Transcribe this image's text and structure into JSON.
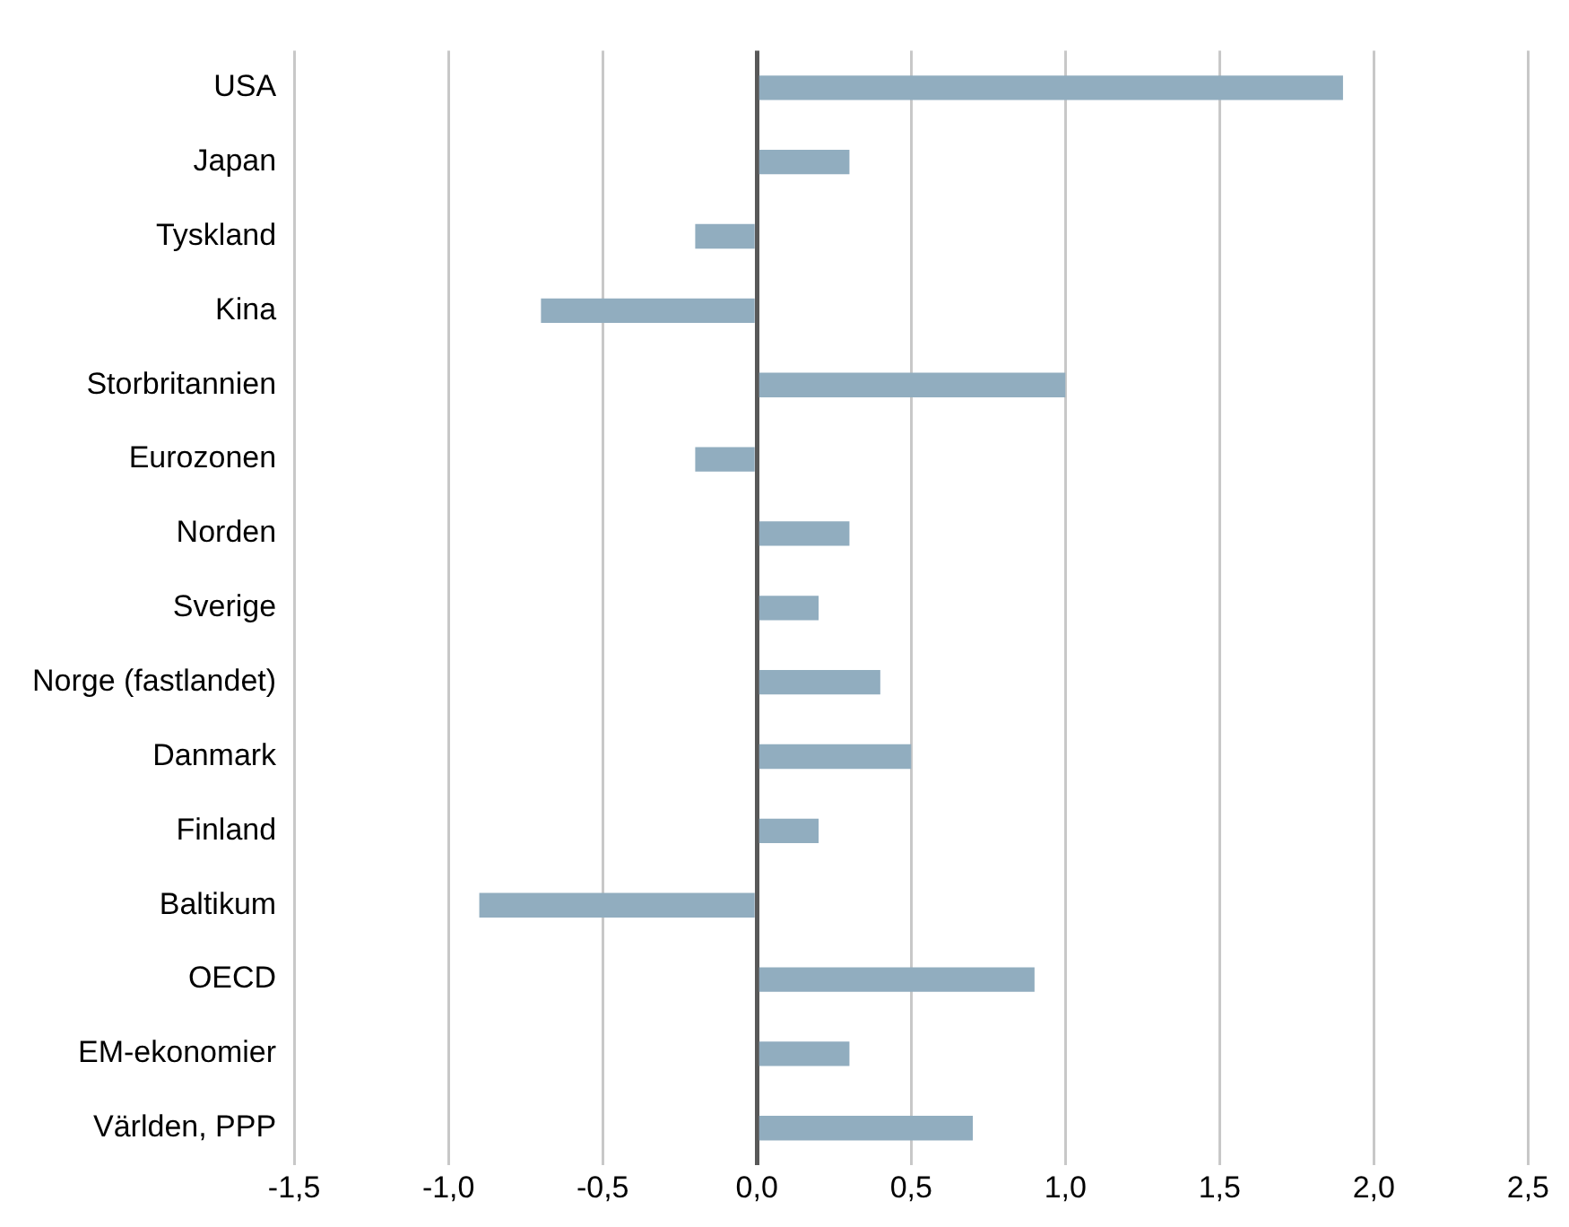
{
  "chart_data": {
    "type": "bar",
    "orientation": "horizontal",
    "categories": [
      "USA",
      "Japan",
      "Tyskland",
      "Kina",
      "Storbritannien",
      "Eurozonen",
      "Norden",
      "Sverige",
      "Norge (fastlandet)",
      "Danmark",
      "Finland",
      "Baltikum",
      "OECD",
      "EM-ekonomier",
      "Världen, PPP"
    ],
    "values": [
      1.9,
      0.3,
      -0.2,
      -0.7,
      1.0,
      -0.2,
      0.3,
      0.2,
      0.4,
      0.5,
      0.2,
      -0.9,
      0.9,
      0.3,
      0.7
    ],
    "color": "#91adbf",
    "xlim": [
      -1.5,
      2.5
    ],
    "xticks": [
      {
        "value": -1.5,
        "label": "-1,5"
      },
      {
        "value": -1,
        "label": "-1,0"
      },
      {
        "value": -0.5,
        "label": "-0,5"
      },
      {
        "value": 0,
        "label": "0,0"
      },
      {
        "value": 0.5,
        "label": "0,5"
      },
      {
        "value": 1,
        "label": "1,0"
      },
      {
        "value": 1.5,
        "label": "1,5"
      },
      {
        "value": 2,
        "label": "2,0"
      },
      {
        "value": 2.5,
        "label": "2,5"
      }
    ],
    "grid": "x",
    "legend": false
  }
}
